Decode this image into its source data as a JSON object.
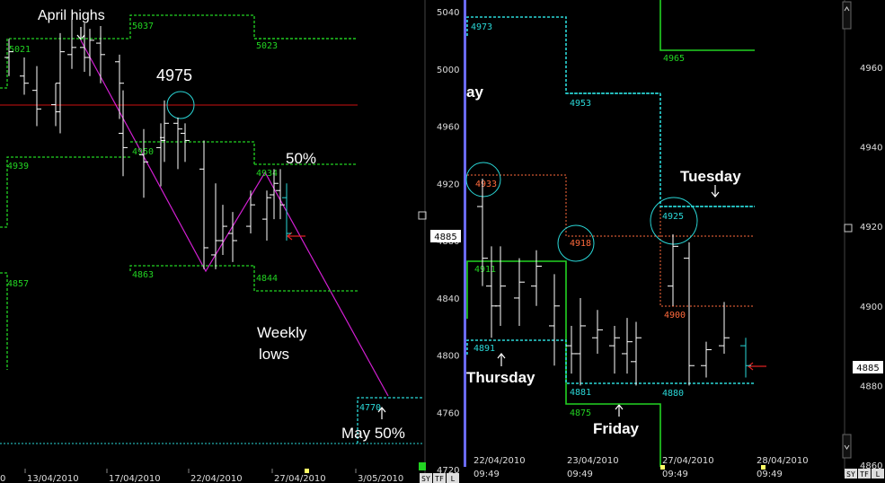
{
  "chart_data": [
    {
      "type": "bar",
      "ohlc_style": "hl-bars",
      "x_labels": [
        "0",
        "13/04/2010",
        "17/04/2010",
        "22/04/2010",
        "27/04/2010",
        "3/05/2010"
      ],
      "y_ticks": [
        5040,
        5000,
        4960,
        4920,
        4880,
        4840,
        4800,
        4760,
        4720
      ],
      "ylim": [
        4712,
        5048
      ],
      "last_price_label": "4885",
      "bars": [
        {
          "h": 5021,
          "l": 4995,
          "o": 5008,
          "c": 5012
        },
        {
          "h": 5008,
          "l": 4982,
          "o": 4995,
          "c": 4990
        },
        {
          "h": 5002,
          "l": 4960,
          "o": 4985,
          "c": 4972
        },
        {
          "h": 4990,
          "l": 4960,
          "o": 4975,
          "c": 4970
        },
        {
          "h": 5025,
          "l": 4955,
          "o": 4990,
          "c": 5012
        },
        {
          "h": 5035,
          "l": 5000,
          "o": 5010,
          "c": 5015
        },
        {
          "h": 5032,
          "l": 4998,
          "o": 5015,
          "c": 5008
        },
        {
          "h": 5028,
          "l": 4995,
          "o": 5008,
          "c": 5020
        },
        {
          "h": 5030,
          "l": 4990,
          "o": 5018,
          "c": 5010
        },
        {
          "h": 5010,
          "l": 4965,
          "o": 5005,
          "c": 4990
        },
        {
          "h": 4985,
          "l": 4925,
          "o": 4955,
          "c": 4945
        },
        {
          "h": 4958,
          "l": 4910,
          "o": 4940,
          "c": 4935
        },
        {
          "h": 4962,
          "l": 4918,
          "o": 4945,
          "c": 4950
        },
        {
          "h": 4978,
          "l": 4935,
          "o": 4952,
          "c": 4962
        },
        {
          "h": 4966,
          "l": 4930,
          "o": 4962,
          "c": 4958
        },
        {
          "h": 4962,
          "l": 4935,
          "o": 4955,
          "c": 4950
        },
        {
          "h": 4950,
          "l": 4860,
          "o": 4930,
          "c": 4875
        },
        {
          "h": 4920,
          "l": 4860,
          "o": 4870,
          "c": 4880
        },
        {
          "h": 4905,
          "l": 4870,
          "o": 4880,
          "c": 4890
        },
        {
          "h": 4900,
          "l": 4865,
          "o": 4885,
          "c": 4880
        },
        {
          "h": 4915,
          "l": 4885,
          "o": 4890,
          "c": 4905
        },
        {
          "h": 4915,
          "l": 4880,
          "o": 4895,
          "c": 4910
        },
        {
          "h": 4930,
          "l": 4895,
          "o": 4912,
          "c": 4920
        },
        {
          "h": 4930,
          "l": 4895,
          "o": 4915,
          "c": 4905
        },
        {
          "h": 4920,
          "l": 4880,
          "o": 4910,
          "c": 4885
        }
      ],
      "levels": [
        {
          "label": "5037",
          "color": "#22d322"
        },
        {
          "label": "5023",
          "color": "#22d322"
        },
        {
          "label": "5021",
          "color": "#22d322"
        },
        {
          "label": "4950",
          "color": "#22d322"
        },
        {
          "label": "4939",
          "color": "#22d322"
        },
        {
          "label": "4934",
          "color": "#22d322"
        },
        {
          "label": "4863",
          "color": "#22d322"
        },
        {
          "label": "4857",
          "color": "#22d322"
        },
        {
          "label": "4844",
          "color": "#22d322"
        },
        {
          "label": "4770",
          "color": "#2ad8d8"
        }
      ],
      "annotations": [
        "April highs",
        "4975",
        "50%",
        "Weekly",
        "lows",
        "May 50%"
      ]
    },
    {
      "type": "bar",
      "ohlc_style": "hl-bars",
      "x_labels": [
        "22/04/2010",
        "23/04/2010",
        "27/04/2010",
        "28/04/2010"
      ],
      "x_time_labels": [
        "09:49",
        "09:49",
        "09:49",
        "09:49"
      ],
      "y_ticks": [
        4960,
        4940,
        4920,
        4900,
        4880,
        4860
      ],
      "ylim": [
        4856,
        4980
      ],
      "last_price_label": "4885",
      "bars": [
        {
          "h": 4932,
          "l": 4905,
          "o": 4925,
          "c": 4912
        },
        {
          "h": 4915,
          "l": 4892,
          "o": 4905,
          "c": 4900
        },
        {
          "h": 4915,
          "l": 4895,
          "o": 4900,
          "c": 4905
        },
        {
          "h": 4912,
          "l": 4895,
          "o": 4902,
          "c": 4906
        },
        {
          "h": 4914,
          "l": 4900,
          "o": 4905,
          "c": 4910
        },
        {
          "h": 4908,
          "l": 4885,
          "o": 4895,
          "c": 4900
        },
        {
          "h": 4895,
          "l": 4883,
          "o": 4890,
          "c": 4888
        },
        {
          "h": 4902,
          "l": 4880,
          "o": 4888,
          "c": 4895
        },
        {
          "h": 4899,
          "l": 4888,
          "o": 4892,
          "c": 4894
        },
        {
          "h": 4895,
          "l": 4883,
          "o": 4890,
          "c": 4892
        },
        {
          "h": 4897,
          "l": 4883,
          "o": 4888,
          "c": 4891
        },
        {
          "h": 4896,
          "l": 4880,
          "o": 4886,
          "c": 4892
        },
        {
          "h": 4918,
          "l": 4900,
          "o": 4905,
          "c": 4915
        },
        {
          "h": 4916,
          "l": 4880,
          "o": 4912,
          "c": 4885
        },
        {
          "h": 4891,
          "l": 4882,
          "o": 4885,
          "c": 4889
        },
        {
          "h": 4901,
          "l": 4888,
          "o": 4890,
          "c": 4892
        },
        {
          "h": 4892,
          "l": 4882,
          "o": 4890,
          "c": 4885
        }
      ],
      "levels": [
        {
          "label": "4973",
          "color": "#2ad8d8"
        },
        {
          "label": "4965",
          "color": "#22d322"
        },
        {
          "label": "4953",
          "color": "#2ad8d8"
        },
        {
          "label": "4933",
          "color": "#ff6a3c"
        },
        {
          "label": "4925",
          "color": "#2ad8d8"
        },
        {
          "label": "4918",
          "color": "#ff6a3c"
        },
        {
          "label": "4911",
          "color": "#22d322"
        },
        {
          "label": "4900",
          "color": "#ff6a3c"
        },
        {
          "label": "4891",
          "color": "#2ad8d8"
        },
        {
          "label": "4881",
          "color": "#2ad8d8"
        },
        {
          "label": "4880",
          "color": "#2ad8d8"
        },
        {
          "label": "4875",
          "color": "#22d322"
        }
      ],
      "annotations": [
        "ay",
        "Tuesday",
        "Thursday",
        "Friday"
      ]
    }
  ],
  "toolbar": {
    "left": [
      "SY",
      "TF",
      "L"
    ],
    "right": [
      "SY",
      "TF",
      "L"
    ]
  },
  "colors": {
    "background": "#000000",
    "bars": "#ffffff",
    "trend": "#d21fd2",
    "red_level": "#cc1111",
    "circle": "#2ad8d8",
    "divider": "#6a6aff",
    "arrow": "#dd2222"
  }
}
